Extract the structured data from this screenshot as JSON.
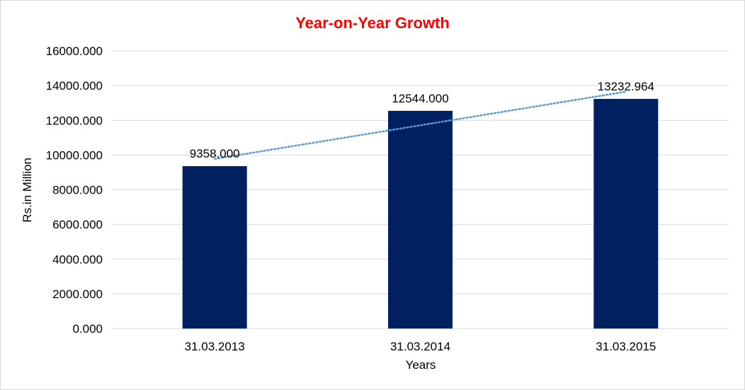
{
  "chart_data": {
    "type": "bar",
    "title": "Year-on-Year Growth",
    "xlabel": "Years",
    "ylabel": "Rs.in Million",
    "categories": [
      "31.03.2013",
      "31.03.2014",
      "31.03.2015"
    ],
    "values": [
      9358.0,
      12544.0,
      13232.964
    ],
    "data_labels": [
      "9358.000",
      "12544.000",
      "13232.964"
    ],
    "ylim": [
      0,
      16000
    ],
    "y_ticks": [
      0,
      2000,
      4000,
      6000,
      8000,
      10000,
      12000,
      14000,
      16000
    ],
    "y_tick_labels": [
      "0.000",
      "2000.000",
      "4000.000",
      "6000.000",
      "8000.000",
      "10000.000",
      "12000.000",
      "14000.000",
      "16000.000"
    ],
    "grid": true,
    "legend": "none",
    "trendline": {
      "type": "linear",
      "style": "dotted"
    },
    "colors": {
      "bar": "#002060",
      "trendline": "#5b9bd5",
      "title": "#ff0000"
    }
  }
}
